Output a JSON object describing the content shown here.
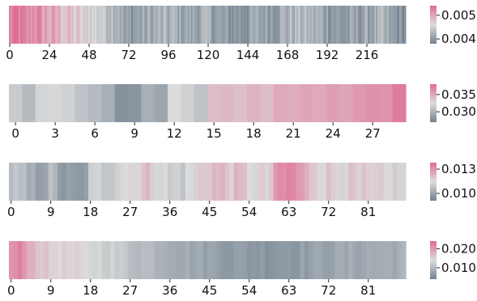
{
  "palette": {
    "low": "#728290",
    "mid": "#dcdcdc",
    "high": "#e06b91"
  },
  "chart_data": [
    {
      "type": "heatmap",
      "n": 240,
      "xticks": [
        0,
        24,
        48,
        72,
        96,
        120,
        144,
        168,
        192,
        216
      ],
      "color_range": [
        0.0038,
        0.0054
      ],
      "colorbar_ticks": [
        "0.005",
        "0.004"
      ],
      "colorbar_tick_values": [
        0.005,
        0.004
      ],
      "profile": [
        [
          0,
          0.0052
        ],
        [
          5,
          0.0053
        ],
        [
          10,
          0.0051
        ],
        [
          15,
          0.0052
        ],
        [
          22,
          0.005
        ],
        [
          30,
          0.0049
        ],
        [
          40,
          0.0047
        ],
        [
          48,
          0.0046
        ],
        [
          55,
          0.0045
        ],
        [
          60,
          0.0044
        ],
        [
          66,
          0.0043
        ],
        [
          70,
          0.004
        ],
        [
          80,
          0.0041
        ],
        [
          90,
          0.0042
        ],
        [
          100,
          0.0042
        ],
        [
          110,
          0.0041
        ],
        [
          120,
          0.0042
        ],
        [
          128,
          0.004
        ],
        [
          140,
          0.004
        ],
        [
          150,
          0.0041
        ],
        [
          160,
          0.0041
        ],
        [
          165,
          0.0042
        ],
        [
          175,
          0.0043
        ],
        [
          185,
          0.0042
        ],
        [
          200,
          0.004
        ],
        [
          215,
          0.0041
        ],
        [
          225,
          0.0042
        ],
        [
          232,
          0.004
        ],
        [
          239,
          0.0039
        ]
      ],
      "noise": 0.00022
    },
    {
      "type": "heatmap",
      "n": 30,
      "xticks": [
        0,
        3,
        6,
        9,
        12,
        15,
        18,
        21,
        24,
        27
      ],
      "color_range": [
        0.027,
        0.038
      ],
      "colorbar_ticks": [
        "0.035",
        "0.030"
      ],
      "colorbar_tick_values": [
        0.035,
        0.03
      ],
      "values": [
        0.0315,
        0.0305,
        0.032,
        0.0322,
        0.0318,
        0.031,
        0.0305,
        0.0298,
        0.028,
        0.0282,
        0.0298,
        0.0292,
        0.0325,
        0.0318,
        0.031,
        0.034,
        0.0342,
        0.0338,
        0.0345,
        0.034,
        0.035,
        0.0348,
        0.0352,
        0.035,
        0.0355,
        0.0352,
        0.0358,
        0.0362,
        0.036,
        0.0372
      ]
    },
    {
      "type": "heatmap",
      "n": 90,
      "xticks": [
        0,
        9,
        18,
        27,
        36,
        45,
        54,
        63,
        72,
        81
      ],
      "color_range": [
        0.0091,
        0.0138
      ],
      "colorbar_ticks": [
        "0.013",
        "0.010"
      ],
      "colorbar_tick_values": [
        0.013,
        0.01
      ],
      "profile": [
        [
          0,
          0.0108
        ],
        [
          5,
          0.01
        ],
        [
          9,
          0.0104
        ],
        [
          13,
          0.0096
        ],
        [
          16,
          0.0095
        ],
        [
          18,
          0.0108
        ],
        [
          22,
          0.0112
        ],
        [
          27,
          0.0116
        ],
        [
          32,
          0.012
        ],
        [
          36,
          0.011
        ],
        [
          40,
          0.0112
        ],
        [
          45,
          0.0122
        ],
        [
          50,
          0.012
        ],
        [
          55,
          0.0116
        ],
        [
          58,
          0.0114
        ],
        [
          61,
          0.013
        ],
        [
          64,
          0.0132
        ],
        [
          67,
          0.0122
        ],
        [
          72,
          0.0118
        ],
        [
          78,
          0.0116
        ],
        [
          84,
          0.0114
        ],
        [
          89,
          0.0114
        ]
      ],
      "noise": 0.00045
    },
    {
      "type": "heatmap",
      "n": 90,
      "xticks": [
        0,
        9,
        18,
        27,
        36,
        45,
        54,
        63,
        72,
        81
      ],
      "color_range": [
        0.004,
        0.024
      ],
      "colorbar_ticks": [
        "0.020",
        "0.010"
      ],
      "colorbar_tick_values": [
        0.02,
        0.01
      ],
      "profile": [
        [
          0,
          0.02
        ],
        [
          2,
          0.0215
        ],
        [
          5,
          0.0175
        ],
        [
          9,
          0.015
        ],
        [
          14,
          0.0145
        ],
        [
          18,
          0.0135
        ],
        [
          22,
          0.013
        ],
        [
          27,
          0.011
        ],
        [
          33,
          0.01
        ],
        [
          40,
          0.0085
        ],
        [
          50,
          0.007
        ],
        [
          58,
          0.0065
        ],
        [
          65,
          0.007
        ],
        [
          72,
          0.008
        ],
        [
          80,
          0.0085
        ],
        [
          89,
          0.009
        ]
      ],
      "noise": 0.0009
    }
  ]
}
